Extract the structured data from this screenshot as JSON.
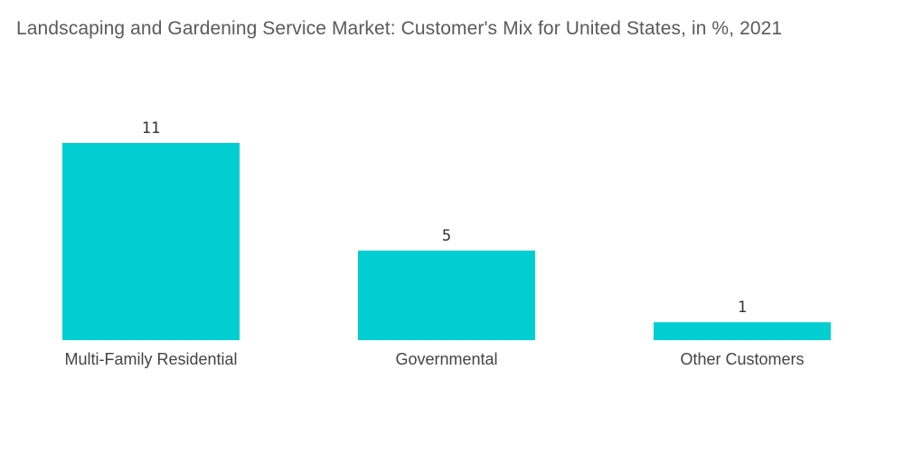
{
  "chart_data": {
    "type": "bar",
    "title": "Landscaping and Gardening Service Market: Customer's Mix for United States, in %, 2021",
    "categories": [
      "Multi-Family Residential",
      "Governmental",
      "Other Customers"
    ],
    "values": [
      11,
      5,
      1
    ],
    "xlabel": "",
    "ylabel": "",
    "ylim": [
      0,
      11
    ],
    "grid": false,
    "legend": "none",
    "bar_color": "#00CED1"
  }
}
